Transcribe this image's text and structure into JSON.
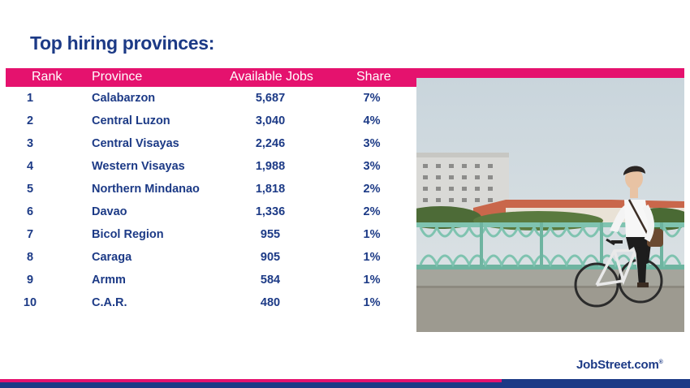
{
  "title": "Top hiring provinces:",
  "table": {
    "headers": {
      "rank": "Rank",
      "province": "Province",
      "jobs": "Available Jobs",
      "share": "Share"
    },
    "rows": [
      {
        "rank": "1",
        "province": "Calabarzon",
        "jobs": "5,687",
        "share": "7%"
      },
      {
        "rank": "2",
        "province": "Central Luzon",
        "jobs": "3,040",
        "share": "4%"
      },
      {
        "rank": "3",
        "province": "Central Visayas",
        "jobs": "2,246",
        "share": "3%"
      },
      {
        "rank": "4",
        "province": "Western Visayas",
        "jobs": "1,988",
        "share": "3%"
      },
      {
        "rank": "5",
        "province": "Northern Mindanao",
        "jobs": "1,818",
        "share": "2%"
      },
      {
        "rank": "6",
        "province": "Davao",
        "jobs": "1,336",
        "share": "2%"
      },
      {
        "rank": "7",
        "province": "Bicol Region",
        "jobs": "955",
        "share": "1%"
      },
      {
        "rank": "8",
        "province": "Caraga",
        "jobs": "905",
        "share": "1%"
      },
      {
        "rank": "9",
        "province": "Armm",
        "jobs": "584",
        "share": "1%"
      },
      {
        "rank": "10",
        "province": "C.A.R.",
        "jobs": "480",
        "share": "1%"
      }
    ]
  },
  "logo": {
    "text": "JobStreet.com",
    "mark": "®"
  },
  "colors": {
    "accent": "#e5126e",
    "brand": "#1c3a86"
  },
  "photo": {
    "icon": "man-on-bicycle-photo"
  }
}
